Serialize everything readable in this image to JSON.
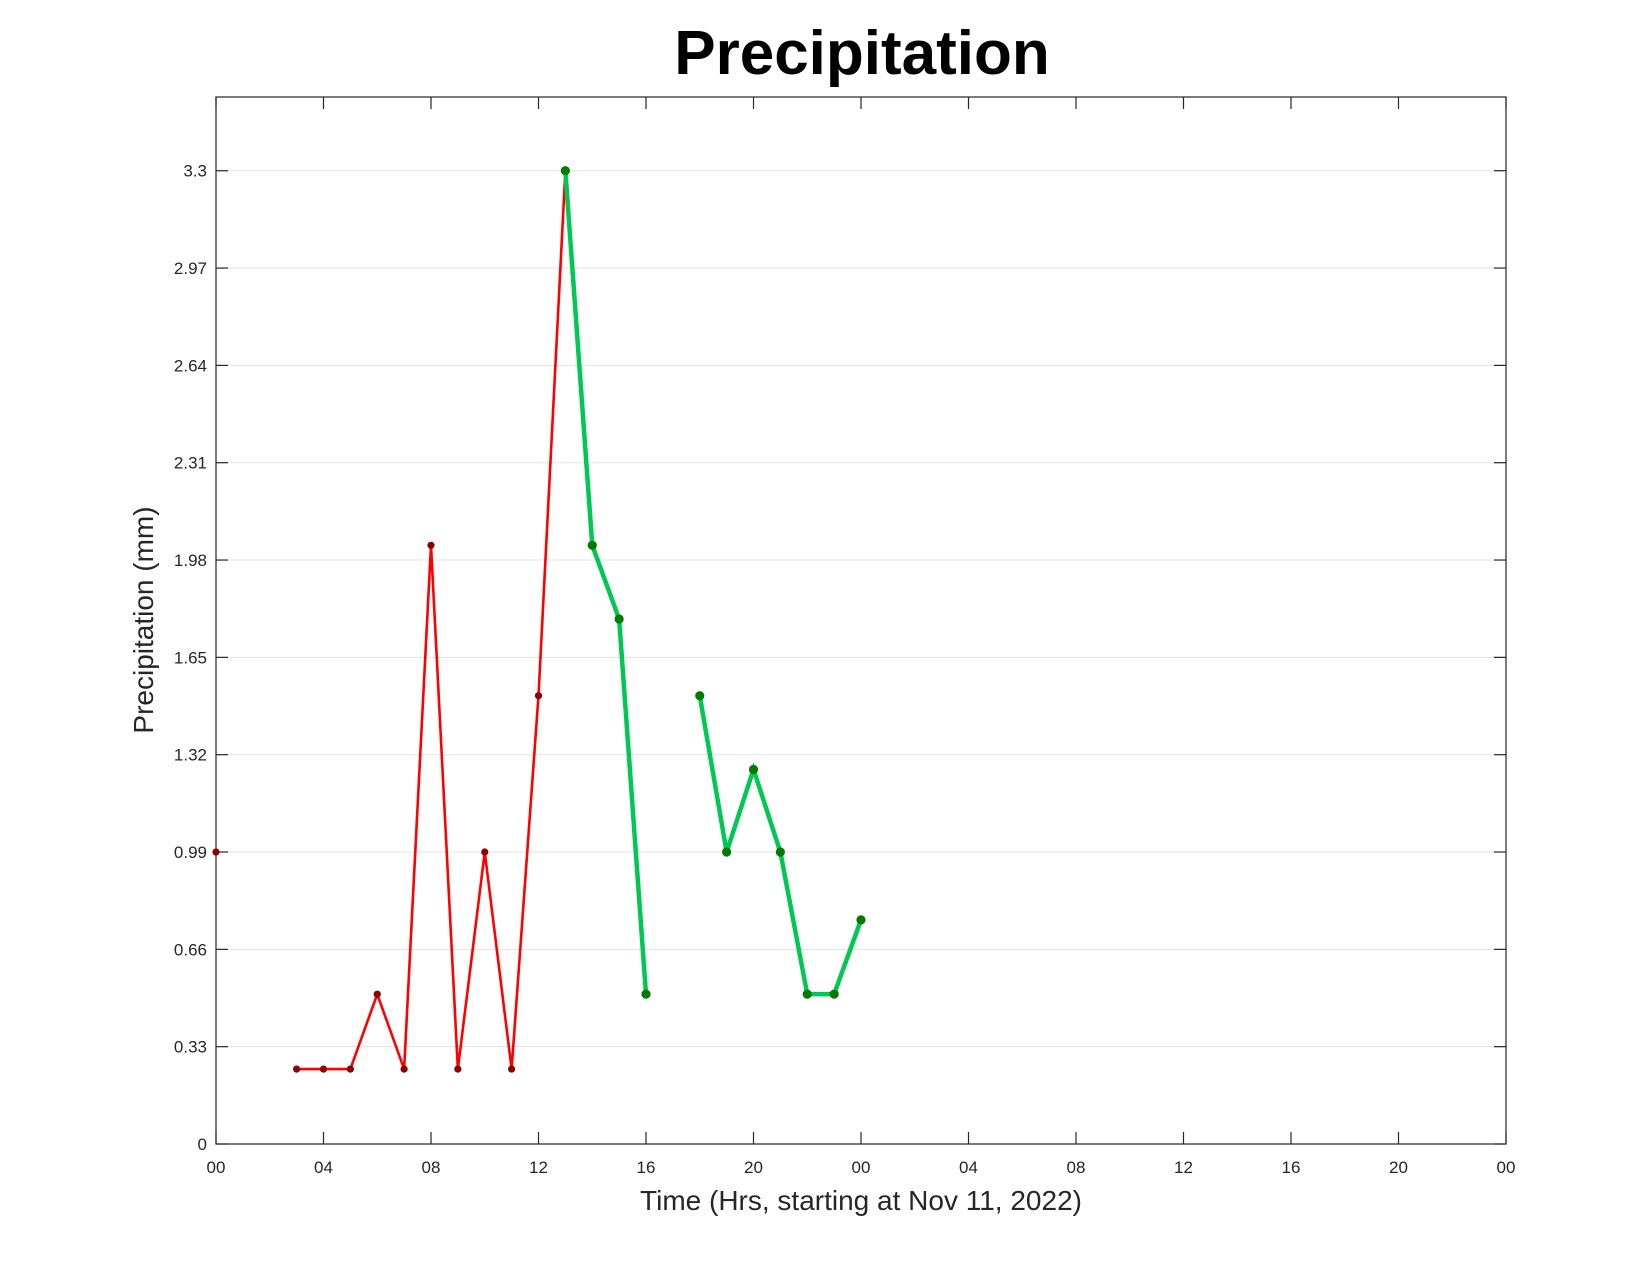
{
  "chart_data": {
    "type": "line",
    "title": "Precipitation",
    "xlabel": "Time (Hrs, starting at Nov 11, 2022)",
    "ylabel": "Precipitation (mm)",
    "xlim": [
      0,
      48
    ],
    "ylim": [
      0,
      3.55
    ],
    "x_ticks": [
      0,
      4,
      8,
      12,
      16,
      20,
      24,
      28,
      32,
      36,
      40,
      44,
      48
    ],
    "x_tick_labels": [
      "00",
      "04",
      "08",
      "12",
      "16",
      "20",
      "00",
      "04",
      "08",
      "12",
      "16",
      "20",
      "00"
    ],
    "y_ticks": [
      0,
      0.33,
      0.66,
      0.99,
      1.32,
      1.65,
      1.98,
      2.31,
      2.64,
      2.97,
      3.3
    ],
    "y_tick_labels": [
      "0",
      "0.33",
      "0.66",
      "0.99",
      "1.32",
      "1.65",
      "1.98",
      "2.31",
      "2.64",
      "2.97",
      "3.3"
    ],
    "grid": "horizontal",
    "series": [
      {
        "color": "#ff0000",
        "marker_color": "#8b0000",
        "x": [
          0,
          3,
          4,
          5,
          6,
          7,
          8,
          9,
          10,
          11,
          12,
          13
        ],
        "values": [
          0.99,
          0.254,
          0.254,
          0.254,
          0.508,
          0.254,
          2.03,
          0.254,
          0.99,
          0.254,
          1.52,
          3.3
        ],
        "segment_breaks_after_x": [
          0
        ]
      },
      {
        "color": "#00c853",
        "marker_color": "#007a00",
        "x": [
          13,
          14,
          15,
          16,
          18,
          19,
          20,
          21,
          22,
          23,
          24
        ],
        "values": [
          3.3,
          2.03,
          1.78,
          0.508,
          1.52,
          0.99,
          1.27,
          0.99,
          0.508,
          0.508,
          0.76
        ],
        "segment_breaks_after_x": [
          16
        ]
      }
    ]
  }
}
